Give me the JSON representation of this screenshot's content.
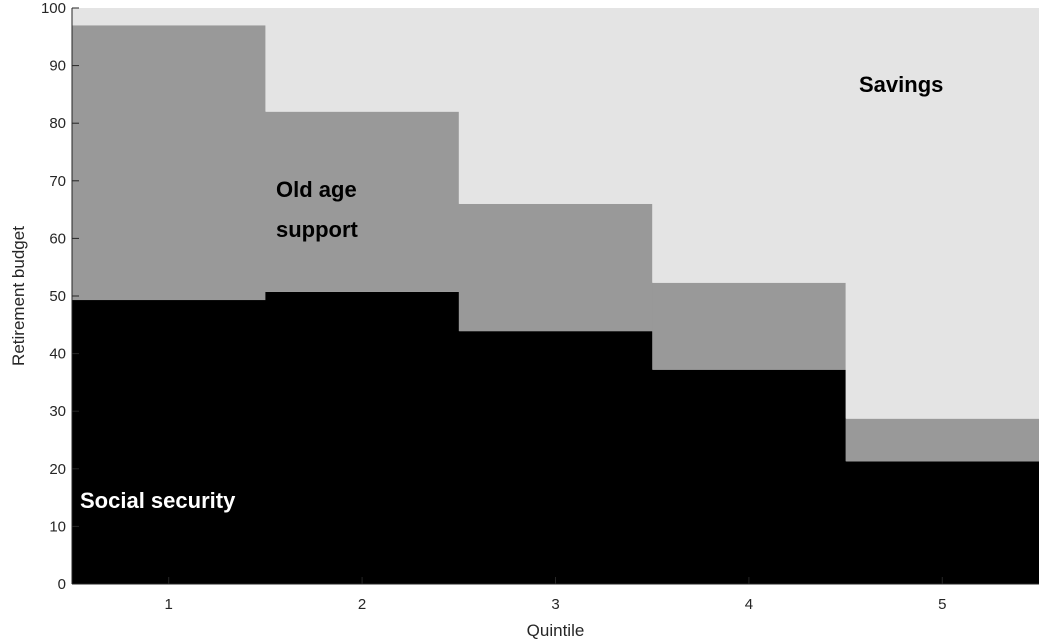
{
  "chart_data": {
    "type": "area",
    "xlabel": "Quintile",
    "ylabel": "Retirement budget",
    "categories": [
      "1",
      "2",
      "3",
      "4",
      "5"
    ],
    "ylim": [
      0,
      100
    ],
    "yticks": [
      "0",
      "10",
      "20",
      "30",
      "40",
      "50",
      "60",
      "70",
      "80",
      "90",
      "100"
    ],
    "grid": false,
    "stacking": "stacked",
    "series": [
      {
        "name": "Social security",
        "values": [
          49.3,
          50.7,
          43.9,
          37.2,
          21.3
        ],
        "color": "#000000"
      },
      {
        "name": "Old age support",
        "values": [
          47.7,
          31.3,
          22.1,
          15.1,
          7.4
        ],
        "color": "#999999"
      },
      {
        "name": "Savings",
        "values": [
          3.0,
          18.0,
          34.0,
          47.7,
          71.3
        ],
        "color": "#e4e4e4"
      }
    ],
    "annotations": [
      {
        "text": "Social security",
        "color": "#ffffff"
      },
      {
        "text": "Old age",
        "color": "#000000"
      },
      {
        "text": "support",
        "color": "#000000"
      },
      {
        "text": "Savings",
        "color": "#000000"
      }
    ]
  }
}
